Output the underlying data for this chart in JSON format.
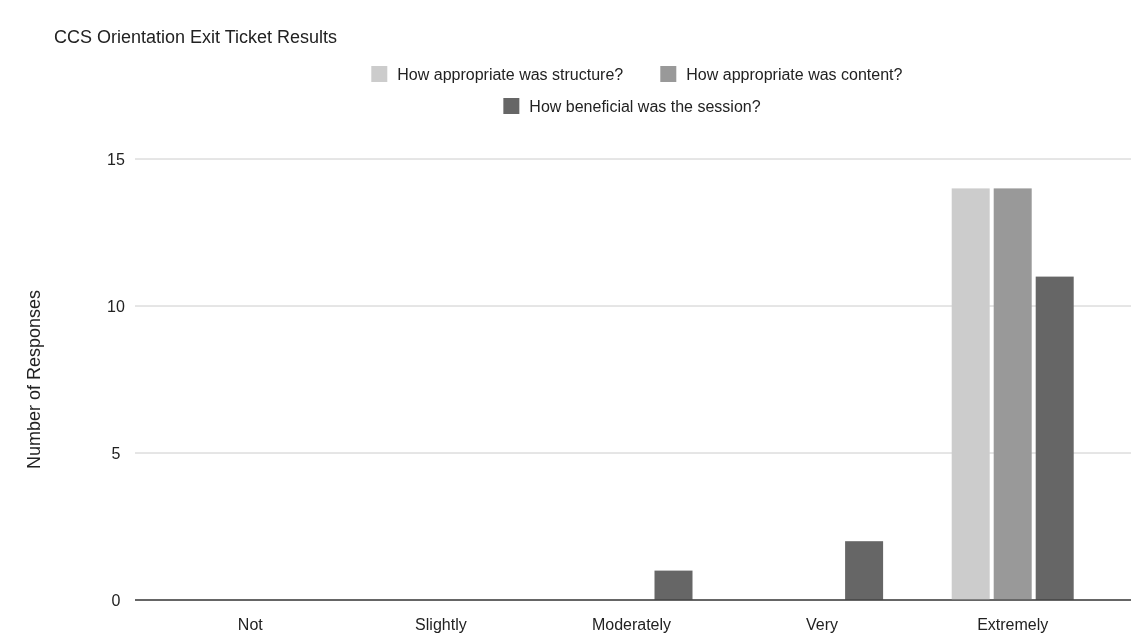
{
  "chart_data": {
    "type": "bar",
    "title": "CCS Orientation Exit Ticket Results",
    "ylabel": "Number of Responses",
    "categories": [
      "Not",
      "Slightly",
      "Moderately",
      "Very",
      "Extremely"
    ],
    "series": [
      {
        "name": "How appropriate was structure?",
        "color": "#cccccc",
        "values": [
          0,
          0,
          0,
          0,
          14
        ]
      },
      {
        "name": "How appropriate was content?",
        "color": "#999999",
        "values": [
          0,
          0,
          0,
          0,
          14
        ]
      },
      {
        "name": "How beneficial was the session?",
        "color": "#666666",
        "values": [
          0,
          0,
          1,
          2,
          11
        ]
      }
    ],
    "ylim": [
      0,
      15
    ],
    "yticks": [
      0,
      5,
      10,
      15
    ],
    "grid": "y",
    "legend": "top"
  }
}
